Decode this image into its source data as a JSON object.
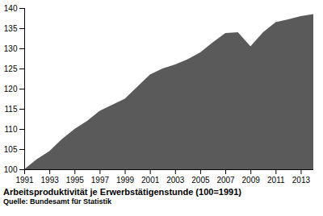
{
  "chart_data": {
    "type": "area",
    "title": "Arbeitsproduktivität je Erwerbstätigenstunde (100=1991)",
    "caption": "Quelle: Bundesamt für Statistik",
    "x": [
      1991,
      1992,
      1993,
      1994,
      1995,
      1996,
      1997,
      1998,
      1999,
      2000,
      2001,
      2002,
      2003,
      2004,
      2005,
      2006,
      2007,
      2008,
      2009,
      2010,
      2011,
      2012,
      2013,
      2014
    ],
    "values": [
      100,
      102.5,
      104.5,
      107.5,
      110,
      112,
      114.5,
      116,
      117.5,
      120.5,
      123.5,
      125,
      126,
      127.3,
      129,
      131.5,
      133.8,
      134,
      130.5,
      134,
      136.5,
      137.2,
      138,
      138.5
    ],
    "color": "#5a5a5a",
    "xlim": [
      1991,
      2014
    ],
    "ylim": [
      100,
      140
    ],
    "xticks": [
      1991,
      1993,
      1995,
      1997,
      1999,
      2001,
      2003,
      2005,
      2007,
      2009,
      2011,
      2013
    ],
    "yticks": [
      100,
      105,
      110,
      115,
      120,
      125,
      130,
      135,
      140
    ],
    "grid": false
  }
}
